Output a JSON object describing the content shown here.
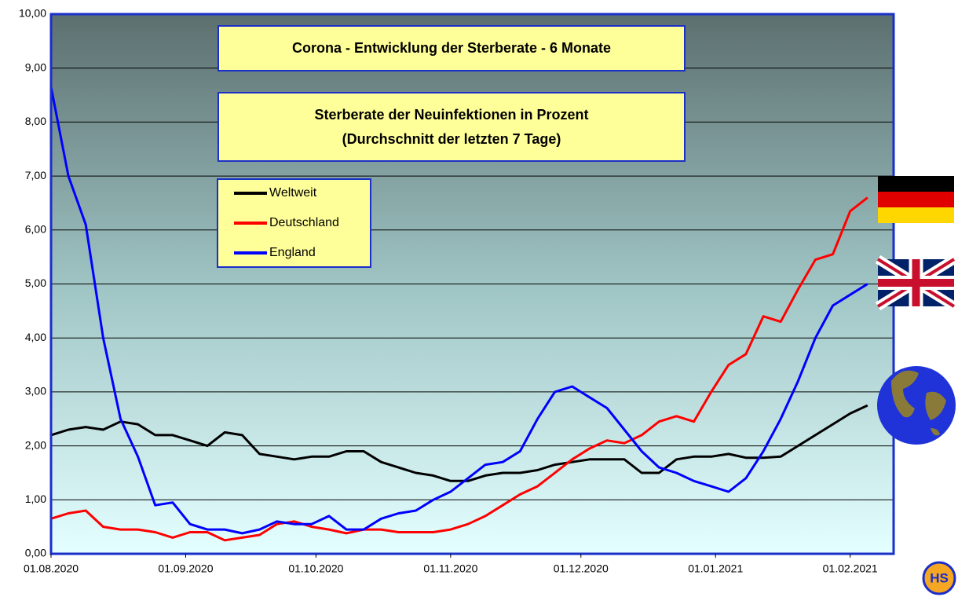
{
  "chart_data": {
    "type": "line",
    "title": "Corona - Entwicklung der Sterberate - 6 Monate",
    "subtitle": [
      "Sterberate der Neuinfektionen in Prozent",
      "(Durchschnitt der letzten 7 Tage)"
    ],
    "x": [
      "01.08.2020",
      "05.08.2020",
      "09.08.2020",
      "13.08.2020",
      "17.08.2020",
      "21.08.2020",
      "25.08.2020",
      "29.08.2020",
      "02.09.2020",
      "06.09.2020",
      "10.09.2020",
      "14.09.2020",
      "18.09.2020",
      "22.09.2020",
      "26.09.2020",
      "30.09.2020",
      "04.10.2020",
      "08.10.2020",
      "12.10.2020",
      "16.10.2020",
      "20.10.2020",
      "24.10.2020",
      "28.10.2020",
      "01.11.2020",
      "05.11.2020",
      "09.11.2020",
      "13.11.2020",
      "17.11.2020",
      "21.11.2020",
      "25.11.2020",
      "29.11.2020",
      "03.12.2020",
      "07.12.2020",
      "11.12.2020",
      "15.12.2020",
      "19.12.2020",
      "23.12.2020",
      "27.12.2020",
      "31.12.2020",
      "04.01.2021",
      "08.01.2021",
      "12.01.2021",
      "16.01.2021",
      "20.01.2021",
      "24.01.2021",
      "28.01.2021",
      "01.02.2021",
      "05.02.2021"
    ],
    "series": [
      {
        "name": "Weltweit",
        "color": "#000000",
        "values": [
          2.2,
          2.3,
          2.35,
          2.3,
          2.45,
          2.4,
          2.2,
          2.2,
          2.1,
          2.0,
          2.25,
          2.2,
          1.85,
          1.8,
          1.75,
          1.8,
          1.8,
          1.9,
          1.9,
          1.7,
          1.6,
          1.5,
          1.45,
          1.35,
          1.35,
          1.45,
          1.5,
          1.5,
          1.55,
          1.65,
          1.7,
          1.75,
          1.75,
          1.75,
          1.5,
          1.5,
          1.75,
          1.8,
          1.8,
          1.85,
          1.78,
          1.78,
          1.8,
          2.0,
          2.2,
          2.4,
          2.6,
          2.75
        ]
      },
      {
        "name": "Deutschland",
        "color": "#ff0000",
        "values": [
          0.65,
          0.75,
          0.8,
          0.5,
          0.45,
          0.45,
          0.4,
          0.3,
          0.4,
          0.4,
          0.25,
          0.3,
          0.35,
          0.55,
          0.6,
          0.5,
          0.45,
          0.38,
          0.45,
          0.45,
          0.4,
          0.4,
          0.4,
          0.45,
          0.55,
          0.7,
          0.9,
          1.1,
          1.25,
          1.5,
          1.75,
          1.95,
          2.1,
          2.05,
          2.2,
          2.45,
          2.55,
          2.45,
          3.0,
          3.5,
          3.7,
          4.4,
          4.3,
          4.9,
          5.45,
          5.55,
          6.35,
          6.6
        ]
      },
      {
        "name": "England",
        "color": "#0000ff",
        "values": [
          8.65,
          7.0,
          6.1,
          4.0,
          2.5,
          1.8,
          0.9,
          0.95,
          0.55,
          0.45,
          0.45,
          0.38,
          0.45,
          0.6,
          0.55,
          0.55,
          0.7,
          0.45,
          0.45,
          0.65,
          0.75,
          0.8,
          1.0,
          1.15,
          1.4,
          1.65,
          1.7,
          1.9,
          2.5,
          3.0,
          3.1,
          2.9,
          2.7,
          2.3,
          1.9,
          1.6,
          1.5,
          1.35,
          1.25,
          1.15,
          1.4,
          1.9,
          2.5,
          3.2,
          4.0,
          4.6,
          4.8,
          5.0
        ]
      }
    ],
    "xlim": [
      "01.08.2020",
      "11.02.2021"
    ],
    "xticks": [
      "01.08.2020",
      "01.09.2020",
      "01.10.2020",
      "01.11.2020",
      "01.12.2020",
      "01.01.2021",
      "01.02.2021"
    ],
    "ylim": [
      0,
      10
    ],
    "yticks": [
      {
        "value": 0,
        "label": "0,00"
      },
      {
        "value": 1,
        "label": "1,00"
      },
      {
        "value": 2,
        "label": "2,00"
      },
      {
        "value": 3,
        "label": "3,00"
      },
      {
        "value": 4,
        "label": "4,00"
      },
      {
        "value": 5,
        "label": "5,00"
      },
      {
        "value": 6,
        "label": "6,00"
      },
      {
        "value": 7,
        "label": "7,00"
      },
      {
        "value": 8,
        "label": "8,00"
      },
      {
        "value": 9,
        "label": "9,00"
      },
      {
        "value": 10,
        "label": "10,00"
      }
    ],
    "grid": true,
    "logo": "HS"
  }
}
